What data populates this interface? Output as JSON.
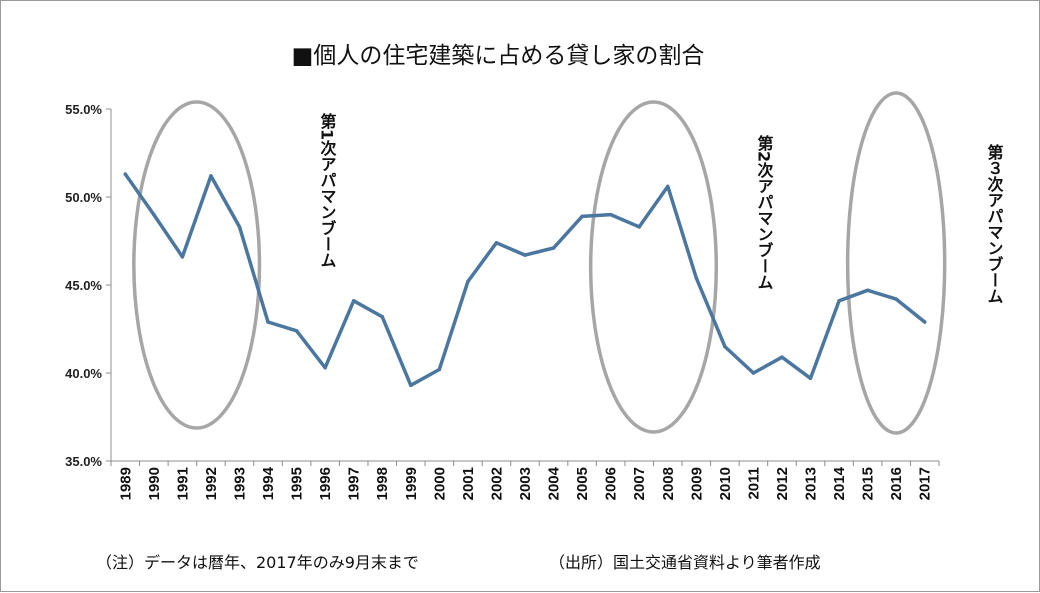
{
  "chart_data": {
    "type": "line",
    "title": "■個人の住宅建築に占める貸し家の割合",
    "categories": [
      "1989",
      "1990",
      "1991",
      "1992",
      "1993",
      "1994",
      "1995",
      "1996",
      "1997",
      "1998",
      "1999",
      "2000",
      "2001",
      "2002",
      "2003",
      "2004",
      "2005",
      "2006",
      "2007",
      "2008",
      "2009",
      "2010",
      "2011",
      "2012",
      "2013",
      "2014",
      "2015",
      "2016",
      "2017"
    ],
    "series": [
      {
        "values": [
          51.3,
          49.0,
          46.6,
          51.2,
          48.3,
          42.9,
          42.4,
          40.3,
          44.1,
          43.2,
          39.3,
          40.2,
          45.2,
          47.4,
          46.7,
          47.1,
          48.9,
          49.0,
          48.3,
          50.6,
          45.4,
          41.5,
          40.0,
          40.9,
          39.7,
          44.1,
          44.7,
          44.2,
          42.9
        ],
        "color": "#4a76a0"
      }
    ],
    "ylim": [
      35.0,
      55.0
    ],
    "yticks": [
      "35.0%",
      "40.0%",
      "45.0%",
      "50.0%",
      "55.0%"
    ],
    "ytick_values": [
      35.0,
      40.0,
      45.0,
      50.0,
      55.0
    ],
    "grid": false,
    "annotations": [
      {
        "text": "第1次アパマンブーム",
        "from": "1990",
        "to": "1993"
      },
      {
        "text": "第2次アパマンブーム",
        "from": "2006",
        "to": "2009"
      },
      {
        "text": "第３次アパマンブーム",
        "from": "2015",
        "to": "2017"
      }
    ],
    "highlight_color": "#a6a6a6"
  },
  "notes": {
    "left": "（注）データは暦年、2017年のみ9月末まで",
    "right": "（出所）国土交通省資料より筆者作成"
  }
}
